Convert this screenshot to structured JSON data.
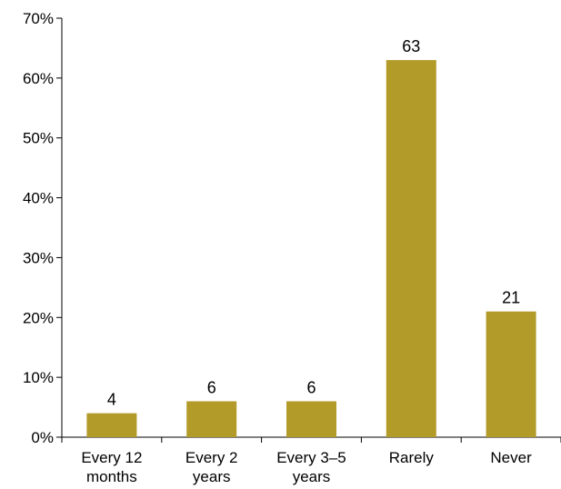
{
  "chart_data": {
    "type": "bar",
    "categories": [
      [
        "Every 12",
        "months"
      ],
      [
        "Every 2",
        "years"
      ],
      [
        "Every 3–5",
        "years"
      ],
      [
        "Rarely"
      ],
      [
        "Never"
      ]
    ],
    "values": [
      4,
      6,
      6,
      63,
      21
    ],
    "data_labels": [
      "4",
      "6",
      "6",
      "63",
      "21"
    ],
    "ylim": [
      0,
      70
    ],
    "yticks": [
      0,
      10,
      20,
      30,
      40,
      50,
      60,
      70
    ],
    "ytick_labels": [
      "0%",
      "10%",
      "20%",
      "30%",
      "40%",
      "50%",
      "60%",
      "70%"
    ],
    "title": "",
    "xlabel": "",
    "ylabel": "",
    "grid": false,
    "bar_color": "#b39b2a",
    "axis_color": "#000000"
  }
}
